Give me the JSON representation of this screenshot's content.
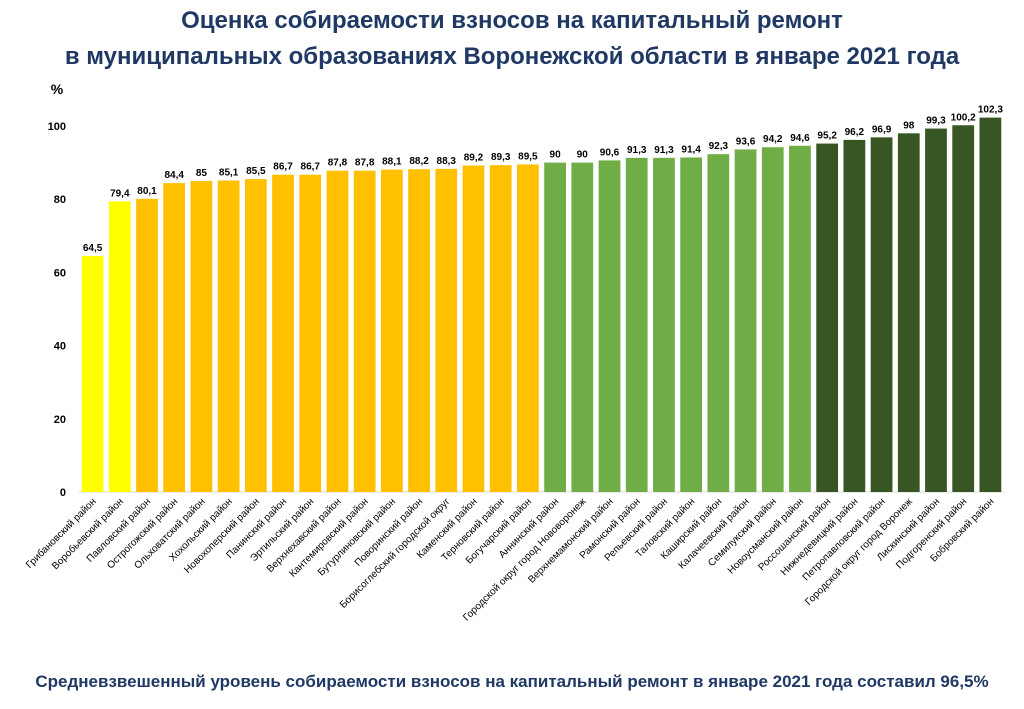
{
  "title_line1": "Оценка собираемости взносов на капитальный ремонт",
  "title_line2": "в муниципальных образованиях Воронежской области в январе 2021 года",
  "footer": "Средневзвешенный уровень собираемости взносов на капитальный ремонт в январе 2021 года составил 96,5%",
  "colors": {
    "title": "#1f3864",
    "yellow": "#ffff00",
    "orange": "#ffc000",
    "light_green": "#70ad47",
    "dark_green": "#375623"
  },
  "chart_data": {
    "type": "bar",
    "ylabel": "%",
    "ylim": [
      0,
      100
    ],
    "yticks": [
      0,
      20,
      40,
      60,
      80,
      100
    ],
    "grid": false,
    "categories": [
      "Грибановский район",
      "Воробьевский район",
      "Павловский район",
      "Острогожский район",
      "Ольховатский район",
      "Хохольский район",
      "Новохоперский район",
      "Панинский район",
      "Эртильский район",
      "Верхнехавский район",
      "Кантемировский район",
      "Бутурлиновский район",
      "Поворинский район",
      "Борисоглебский городской округ",
      "Каменский район",
      "Терновский район",
      "Богучарский район",
      "Аннинский район",
      "Городской округ город Нововоронеж",
      "Верхнемамонский район",
      "Рамонский район",
      "Репьевский район",
      "Таловский район",
      "Каширский район",
      "Калачеевский район",
      "Семилукский район",
      "Новоусманский район",
      "Россошанский район",
      "Нижнедевицкий район",
      "Петропавловский район",
      "Городской округ город Воронеж",
      "Лискинский район",
      "Подгоренский район",
      "Бобровский район"
    ],
    "values": [
      64.5,
      79.4,
      80.1,
      84.4,
      85,
      85.1,
      85.5,
      86.7,
      86.7,
      87.8,
      87.8,
      88.1,
      88.2,
      88.3,
      89.2,
      89.3,
      89.5,
      90,
      90,
      90.6,
      91.3,
      91.3,
      91.4,
      92.3,
      93.6,
      94.2,
      94.6,
      95.2,
      96.2,
      96.9,
      98,
      99.3,
      100.2,
      102.3
    ],
    "value_labels": [
      "64,5",
      "79,4",
      "80,1",
      "84,4",
      "85",
      "85,1",
      "85,5",
      "86,7",
      "86,7",
      "87,8",
      "87,8",
      "88,1",
      "88,2",
      "88,3",
      "89,2",
      "89,3",
      "89,5",
      "90",
      "90",
      "90,6",
      "91,3",
      "91,3",
      "91,4",
      "92,3",
      "93,6",
      "94,2",
      "94,6",
      "95,2",
      "96,2",
      "96,9",
      "98",
      "99,3",
      "100,2",
      "102,3"
    ],
    "bar_color_keys": [
      "yellow",
      "yellow",
      "orange",
      "orange",
      "orange",
      "orange",
      "orange",
      "orange",
      "orange",
      "orange",
      "orange",
      "orange",
      "orange",
      "orange",
      "orange",
      "orange",
      "orange",
      "light_green",
      "light_green",
      "light_green",
      "light_green",
      "light_green",
      "light_green",
      "light_green",
      "light_green",
      "light_green",
      "light_green",
      "dark_green",
      "dark_green",
      "dark_green",
      "dark_green",
      "dark_green",
      "dark_green",
      "dark_green"
    ]
  }
}
